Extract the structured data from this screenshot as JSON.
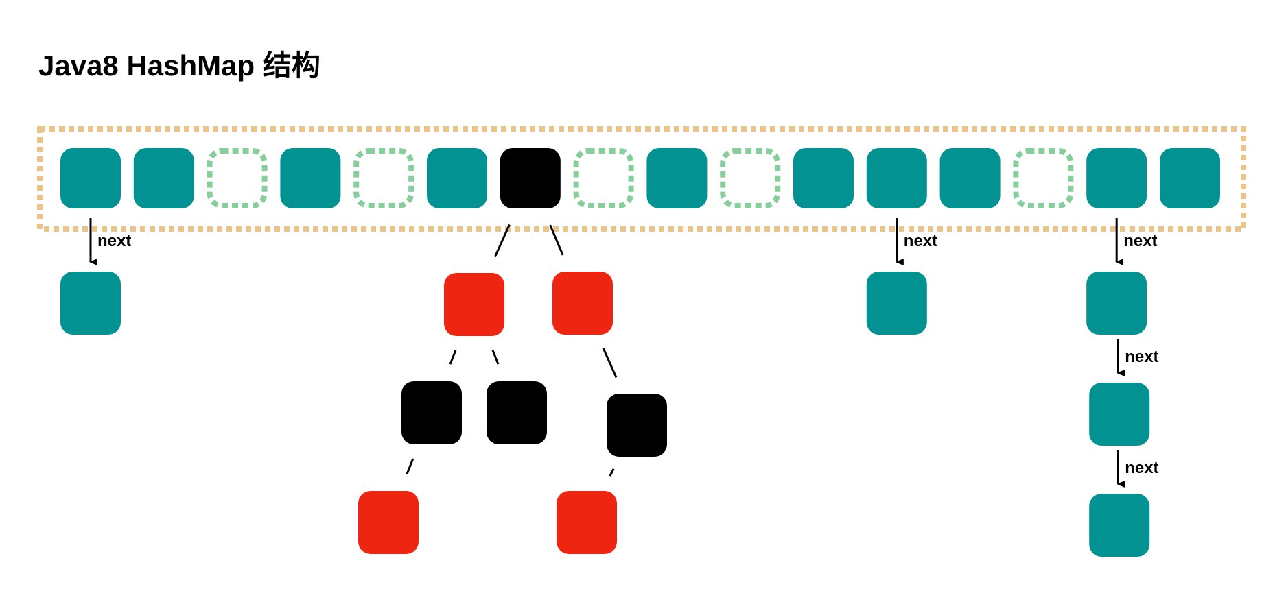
{
  "title": "Java8 HashMap 结构",
  "colors": {
    "bucket_fill": "#029292",
    "empty_bucket_border": "#86ce9c",
    "array_border": "#edc38c",
    "red_node": "#ee2510",
    "black_node": "#000000",
    "connector": "#000000"
  },
  "array": {
    "buckets": [
      "teal",
      "teal",
      "empty",
      "teal",
      "empty",
      "teal",
      "black",
      "empty",
      "teal",
      "empty",
      "teal",
      "teal",
      "teal",
      "empty",
      "teal",
      "teal"
    ]
  },
  "chains": [
    {
      "bucket_index": 0,
      "nodes": [
        "teal"
      ],
      "link_label": "next"
    },
    {
      "bucket_index": 11,
      "nodes": [
        "teal"
      ],
      "link_label": "next"
    },
    {
      "bucket_index": 14,
      "nodes": [
        "teal",
        "teal",
        "teal"
      ],
      "link_label": "next"
    }
  ],
  "tree": {
    "bucket_index": 6,
    "nodes": [
      {
        "id": "L",
        "color": "red",
        "parent": "root"
      },
      {
        "id": "R",
        "color": "red",
        "parent": "root"
      },
      {
        "id": "LL",
        "color": "black",
        "parent": "L"
      },
      {
        "id": "LR",
        "color": "black",
        "parent": "L"
      },
      {
        "id": "RR",
        "color": "black",
        "parent": "R"
      },
      {
        "id": "LLL",
        "color": "red",
        "parent": "LL"
      },
      {
        "id": "RRL",
        "color": "red",
        "parent": "RR"
      }
    ]
  }
}
